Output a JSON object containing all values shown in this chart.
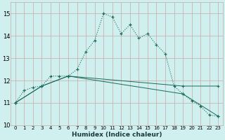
{
  "xlabel": "Humidex (Indice chaleur)",
  "bg_color": "#cff0ee",
  "grid_color": "#c8a8a8",
  "line_color": "#1a6b5a",
  "xlim": [
    -0.5,
    23.5
  ],
  "ylim": [
    10,
    15.5
  ],
  "yticks": [
    10,
    11,
    12,
    13,
    14,
    15
  ],
  "xticks": [
    0,
    1,
    2,
    3,
    4,
    5,
    6,
    7,
    8,
    9,
    10,
    11,
    12,
    13,
    14,
    15,
    16,
    17,
    18,
    19,
    20,
    21,
    22,
    23
  ],
  "line1_x": [
    0,
    1,
    2,
    3,
    4,
    5,
    6,
    7,
    8,
    9,
    10,
    11,
    12,
    13,
    14,
    15,
    16,
    17,
    18,
    19,
    20,
    21,
    22,
    23
  ],
  "line1_y": [
    11.0,
    11.55,
    11.7,
    11.75,
    12.2,
    12.2,
    12.2,
    12.5,
    13.3,
    13.8,
    15.0,
    14.85,
    14.1,
    14.5,
    13.9,
    14.1,
    13.6,
    13.2,
    11.75,
    11.4,
    11.1,
    10.85,
    10.45,
    10.4
  ],
  "line2_x": [
    0,
    3,
    6,
    19,
    23
  ],
  "line2_y": [
    11.0,
    11.75,
    12.2,
    11.75,
    11.75
  ],
  "line3_x": [
    0,
    3,
    6,
    19,
    23
  ],
  "line3_y": [
    11.0,
    11.75,
    12.2,
    11.4,
    10.4
  ]
}
